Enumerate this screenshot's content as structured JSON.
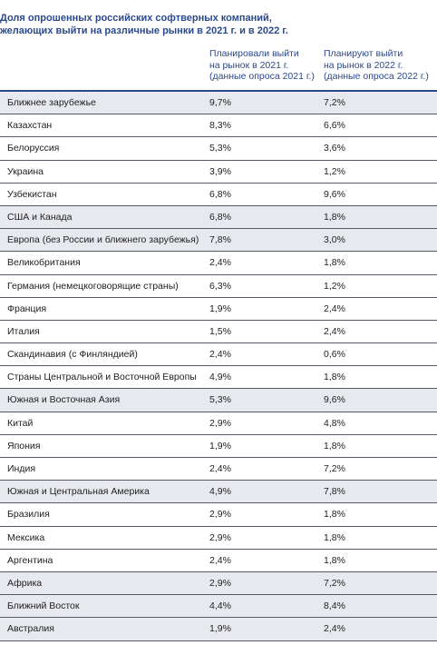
{
  "title": {
    "line1": "Доля опрошенных российских софтверных компаний,",
    "line2": "желающих выйти на различные рынки в 2021 г. и в 2022 г."
  },
  "columns": {
    "col2021": [
      "Планировали выйти",
      "на рынок в 2021 г.",
      "(данные опроса 2021 г.)"
    ],
    "col2022": [
      "Планируют выйти",
      "на рынок в 2022 г.",
      "(данные опроса 2022 г.)"
    ]
  },
  "rows": [
    {
      "name": "Ближнее зарубежье",
      "v2021": "9,7%",
      "v2022": "7,2%",
      "shaded": true
    },
    {
      "name": "Казахстан",
      "v2021": "8,3%",
      "v2022": "6,6%",
      "shaded": false
    },
    {
      "name": "Белоруссия",
      "v2021": "5,3%",
      "v2022": "3,6%",
      "shaded": false
    },
    {
      "name": "Украина",
      "v2021": "3,9%",
      "v2022": "1,2%",
      "shaded": false
    },
    {
      "name": "Узбекистан",
      "v2021": "6,8%",
      "v2022": "9,6%",
      "shaded": false
    },
    {
      "name": "США и Канада",
      "v2021": "6,8%",
      "v2022": "1,8%",
      "shaded": true
    },
    {
      "name": "Европа (без России и ближнего зарубежья)",
      "v2021": "7,8%",
      "v2022": "3,0%",
      "shaded": true
    },
    {
      "name": "Великобритания",
      "v2021": "2,4%",
      "v2022": "1,8%",
      "shaded": false
    },
    {
      "name": "Германия (немецкоговорящие страны)",
      "v2021": "6,3%",
      "v2022": "1,2%",
      "shaded": false
    },
    {
      "name": "Франция",
      "v2021": "1,9%",
      "v2022": "2,4%",
      "shaded": false
    },
    {
      "name": "Италия",
      "v2021": "1,5%",
      "v2022": "2,4%",
      "shaded": false
    },
    {
      "name": "Скандинавия (с Финляндией)",
      "v2021": "2,4%",
      "v2022": "0,6%",
      "shaded": false
    },
    {
      "name": "Страны Центральной и Восточной Европы",
      "v2021": "4,9%",
      "v2022": "1,8%",
      "shaded": false
    },
    {
      "name": "Южная и Восточная Азия",
      "v2021": "5,3%",
      "v2022": "9,6%",
      "shaded": true
    },
    {
      "name": "Китай",
      "v2021": "2,9%",
      "v2022": "4,8%",
      "shaded": false
    },
    {
      "name": "Япония",
      "v2021": "1,9%",
      "v2022": "1,8%",
      "shaded": false
    },
    {
      "name": "Индия",
      "v2021": "2,4%",
      "v2022": "7,2%",
      "shaded": false
    },
    {
      "name": "Южная и Центральная Америка",
      "v2021": "4,9%",
      "v2022": "7,8%",
      "shaded": true
    },
    {
      "name": "Бразилия",
      "v2021": "2,9%",
      "v2022": "1,8%",
      "shaded": false
    },
    {
      "name": "Мексика",
      "v2021": "2,9%",
      "v2022": "1,8%",
      "shaded": false
    },
    {
      "name": "Аргентина",
      "v2021": "2,4%",
      "v2022": "1,8%",
      "shaded": false
    },
    {
      "name": "Африка",
      "v2021": "2,9%",
      "v2022": "7,2%",
      "shaded": true
    },
    {
      "name": "Ближний Восток",
      "v2021": "4,4%",
      "v2022": "8,4%",
      "shaded": true
    },
    {
      "name": "Австралия",
      "v2021": "1,9%",
      "v2022": "2,4%",
      "shaded": true
    }
  ]
}
